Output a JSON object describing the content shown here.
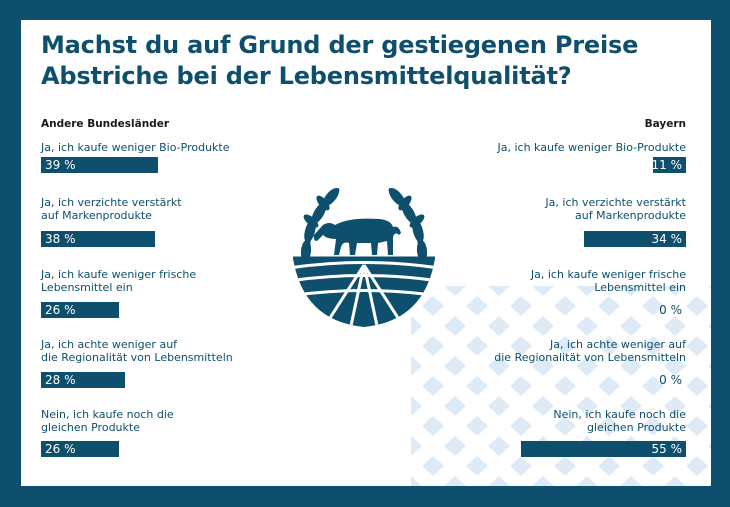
{
  "title_line1": "Machst du auf Grund der gestiegenen Preise",
  "title_line2": "Abstriche bei der Lebensmittelqualität?",
  "colors": {
    "primary": "#0d4f6c",
    "pattern": "#c9ddef",
    "background": "#ffffff"
  },
  "chart_data": [
    {
      "type": "bar",
      "title": "Andere Bundesländer",
      "categories": [
        "Ja, ich kaufe weniger Bio-Produkte",
        "Ja, ich verzichte verstärkt auf Markenprodukte",
        "Ja, ich kaufe weniger frische Lebensmittel ein",
        "Ja, ich achte weniger auf die Regionalität von Lebensmitteln",
        "Nein, ich kaufe noch die gleichen Produkte"
      ],
      "label_lines": [
        [
          "Ja, ich kaufe weniger Bio-Produkte"
        ],
        [
          "Ja, ich verzichte verstärkt",
          "auf Markenprodukte"
        ],
        [
          "Ja, ich kaufe weniger frische",
          "Lebensmittel ein"
        ],
        [
          "Ja, ich achte weniger auf",
          "die Regionalität von Lebensmitteln"
        ],
        [
          "Nein, ich kaufe noch die",
          "gleichen Produkte"
        ]
      ],
      "values": [
        39,
        38,
        26,
        28,
        26
      ],
      "value_labels": [
        "39 %",
        "38 %",
        "26 %",
        "28 %",
        "26 %"
      ],
      "unit": "%"
    },
    {
      "type": "bar",
      "title": "Bayern",
      "categories": [
        "Ja, ich kaufe weniger Bio-Produkte",
        "Ja, ich verzichte verstärkt auf Markenprodukte",
        "Ja, ich kaufe weniger frische Lebensmittel ein",
        "Ja, ich achte weniger auf die Regionalität von Lebensmitteln",
        "Nein, ich kaufe noch die gleichen Produkte"
      ],
      "label_lines": [
        [
          "Ja, ich kaufe weniger Bio-Produkte"
        ],
        [
          "Ja, ich verzichte verstärkt",
          "auf Markenprodukte"
        ],
        [
          "Ja, ich kaufe weniger frische",
          "Lebensmittel ein"
        ],
        [
          "Ja, ich achte weniger auf",
          "die Regionalität von Lebensmitteln"
        ],
        [
          "Nein, ich kaufe noch die",
          "gleichen Produkte"
        ]
      ],
      "values": [
        11,
        34,
        0,
        0,
        55
      ],
      "value_labels": [
        "11 %",
        "34 %",
        "0 %",
        "0 %",
        "55 %"
      ],
      "unit": "%"
    }
  ]
}
